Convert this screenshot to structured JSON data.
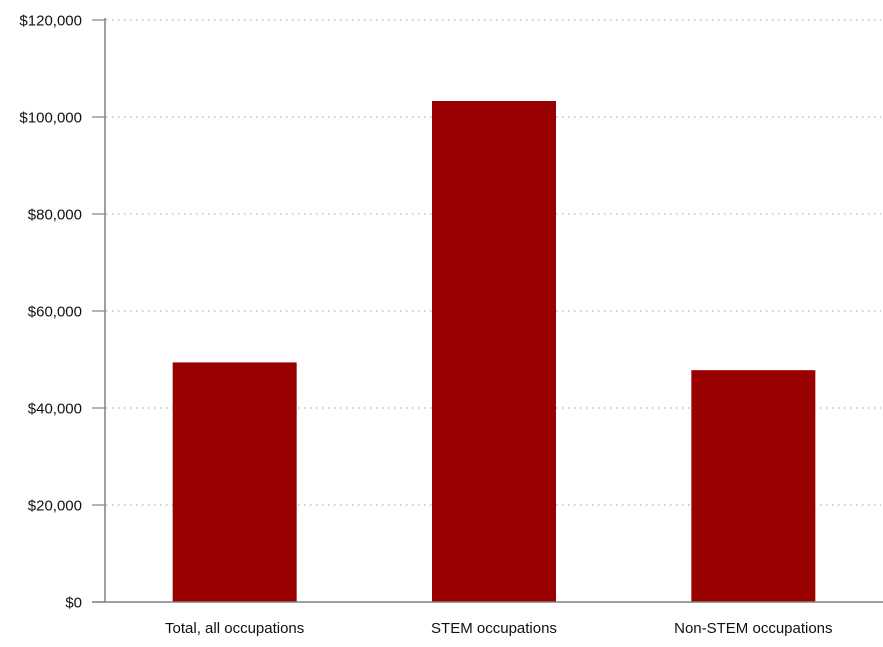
{
  "chart_data": {
    "type": "bar",
    "title": "",
    "xlabel": "",
    "ylabel": "",
    "categories": [
      "Total, all occupations",
      "STEM occupations",
      "Non-STEM occupations"
    ],
    "values": [
      49400,
      103300,
      47800
    ],
    "ylim": [
      0,
      120000
    ],
    "yticks": [
      0,
      20000,
      40000,
      60000,
      80000,
      100000,
      120000
    ],
    "ytick_labels": [
      "$0",
      "$20,000",
      "$40,000",
      "$60,000",
      "$80,000",
      "$100,000",
      "$120,000"
    ],
    "grid": true,
    "bar_color": "#990000",
    "gridline_color": "#b3b3b3",
    "axis_color": "#808080"
  }
}
